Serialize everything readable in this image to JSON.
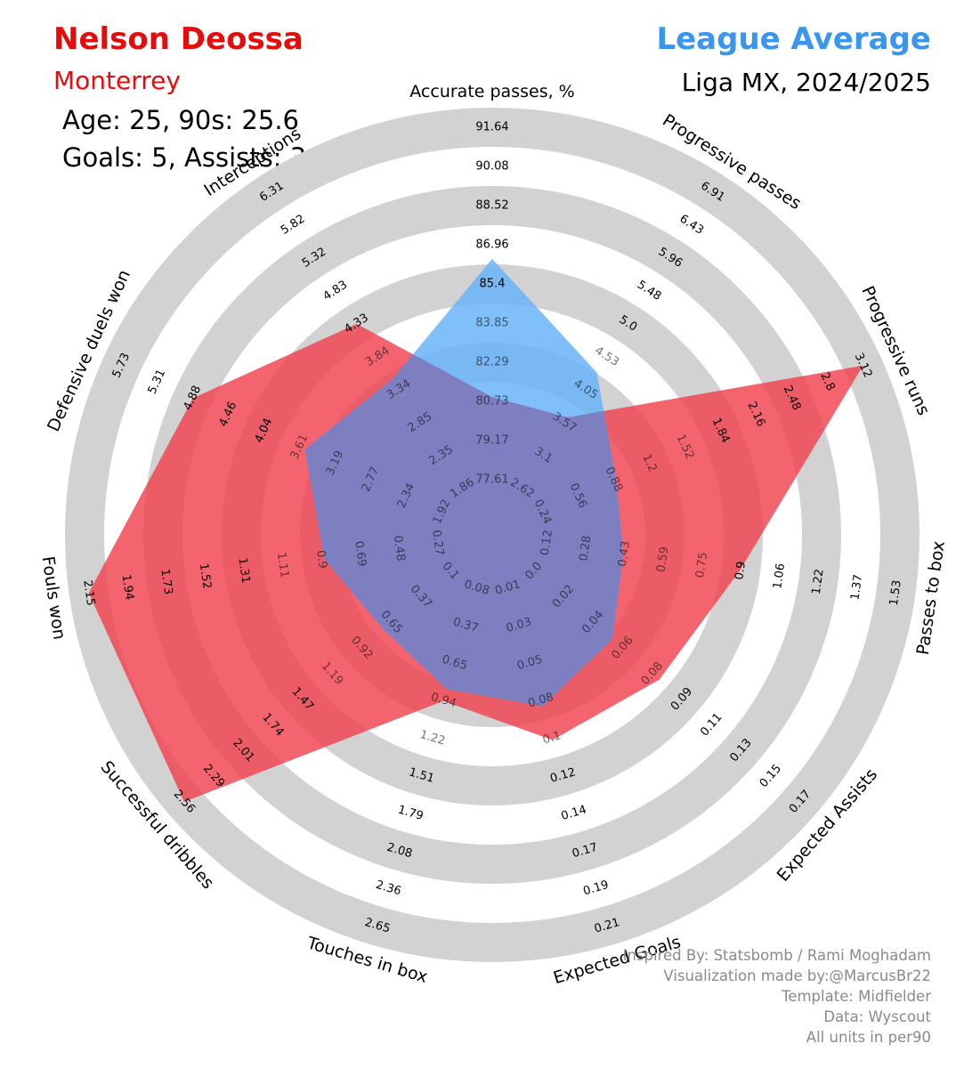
{
  "header": {
    "player_name": "Nelson Deossa",
    "team": "Monterrey",
    "line1": "Age: 25, 90s: 25.6",
    "line2": "Goals: 5, Assists: 3",
    "comparison": "League Average",
    "season": "Liga MX, 2024/2025"
  },
  "credits": [
    "Inspired By: Statsbomb / Rami Moghadam",
    "Visualization made by:@MarcusBr22",
    "Template: Midfielder",
    "Data: Wyscout",
    "All units in per90"
  ],
  "colors": {
    "player": "#e60c0c",
    "player_fill": "#f0424f",
    "league": "#3a95f0",
    "league_fill": "#6ab4f8",
    "overlap_fill": "#7e7fc0",
    "ring": "#d2d2d2"
  },
  "chart_data": {
    "type": "radar",
    "categories": [
      "Accurate passes, %",
      "Progressive passes",
      "Progressive runs",
      "Passes to box",
      "Expected Assists",
      "Expected Goals",
      "Touches in box",
      "Successful dribbles",
      "Fouls won",
      "Defensive duels won",
      "Interceptions"
    ],
    "ticks": [
      [
        "77.61",
        "79.17",
        "80.73",
        "82.29",
        "83.85",
        "85.4",
        "86.96",
        "88.52",
        "90.08",
        "91.64"
      ],
      [
        "2.62",
        "3.1",
        "3.57",
        "4.05",
        "4.53",
        "5.0",
        "5.48",
        "5.96",
        "6.43",
        "6.91"
      ],
      [
        "0.24",
        "0.56",
        "0.88",
        "1.2",
        "1.52",
        "1.84",
        "2.16",
        "2.48",
        "2.8",
        "3.12"
      ],
      [
        "0.12",
        "0.28",
        "0.43",
        "0.59",
        "0.75",
        "0.9",
        "1.06",
        "1.22",
        "1.37",
        "1.53"
      ],
      [
        "0.0",
        "0.02",
        "0.04",
        "0.06",
        "0.08",
        "0.09",
        "0.11",
        "0.13",
        "0.15",
        "0.17"
      ],
      [
        "0.01",
        "0.03",
        "0.05",
        "0.08",
        "0.1",
        "0.12",
        "0.14",
        "0.17",
        "0.19",
        "0.21"
      ],
      [
        "0.08",
        "0.37",
        "0.65",
        "0.94",
        "1.22",
        "1.51",
        "1.79",
        "2.08",
        "2.36",
        "2.65"
      ],
      [
        "0.1",
        "0.37",
        "0.65",
        "0.92",
        "1.19",
        "1.47",
        "1.74",
        "2.01",
        "2.29",
        "2.56"
      ],
      [
        "0.27",
        "0.48",
        "0.69",
        "0.9",
        "1.11",
        "1.31",
        "1.52",
        "1.73",
        "1.94",
        "2.15"
      ],
      [
        "1.92",
        "2.34",
        "2.77",
        "3.19",
        "3.61",
        "4.04",
        "4.46",
        "4.88",
        "5.31",
        "5.73"
      ],
      [
        "1.86",
        "2.35",
        "2.85",
        "3.34",
        "3.84",
        "4.33",
        "4.83",
        "5.32",
        "5.82",
        "6.31"
      ]
    ],
    "series": [
      {
        "name": "Nelson Deossa",
        "values": [
          80.9,
          3.65,
          3.12,
          0.9,
          0.08,
          0.1,
          0.94,
          2.56,
          2.15,
          4.88,
          4.33
        ]
      },
      {
        "name": "League Average",
        "values": [
          86.4,
          4.3,
          0.9,
          0.43,
          0.05,
          0.08,
          0.85,
          0.72,
          0.88,
          3.55,
          3.5
        ]
      }
    ]
  }
}
